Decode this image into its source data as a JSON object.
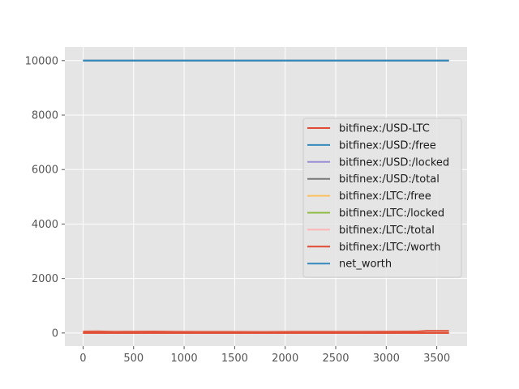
{
  "chart_data": {
    "type": "line",
    "title": "",
    "xlabel": "",
    "ylabel": "",
    "xlim": [
      -180,
      3800
    ],
    "ylim": [
      -480,
      10500
    ],
    "xticks": [
      0,
      500,
      1000,
      1500,
      2000,
      2500,
      3000,
      3500
    ],
    "yticks": [
      0,
      2000,
      4000,
      6000,
      8000,
      10000
    ],
    "grid": true,
    "legend_position": "right",
    "series": [
      {
        "name": "bitfinex:/USD-LTC",
        "color": "#e24a33",
        "x": [
          0,
          150,
          300,
          500,
          700,
          900,
          1200,
          1500,
          1800,
          2100,
          2400,
          2700,
          3000,
          3300,
          3400,
          3620
        ],
        "y": [
          55,
          60,
          48,
          52,
          55,
          46,
          44,
          45,
          42,
          46,
          50,
          48,
          52,
          56,
          75,
          80
        ]
      },
      {
        "name": "bitfinex:/USD:/free",
        "color": "#348abd",
        "x": [
          0,
          3620
        ],
        "y": [
          10000,
          10000
        ]
      },
      {
        "name": "bitfinex:/USD:/locked",
        "color": "#988ed5",
        "x": [
          0,
          3620
        ],
        "y": [
          0,
          0
        ]
      },
      {
        "name": "bitfinex:/USD:/total",
        "color": "#777777",
        "x": [
          0,
          3620
        ],
        "y": [
          10000,
          10000
        ]
      },
      {
        "name": "bitfinex:/LTC:/free",
        "color": "#fbc15e",
        "x": [
          0,
          3620
        ],
        "y": [
          0,
          0
        ]
      },
      {
        "name": "bitfinex:/LTC:/locked",
        "color": "#8eba42",
        "x": [
          0,
          3620
        ],
        "y": [
          0,
          0
        ]
      },
      {
        "name": "bitfinex:/LTC:/total",
        "color": "#ffb5b8",
        "x": [
          0,
          3620
        ],
        "y": [
          0,
          0
        ]
      },
      {
        "name": "bitfinex:/LTC:/worth",
        "color": "#e24a33",
        "x": [
          0,
          3620
        ],
        "y": [
          0,
          0
        ]
      },
      {
        "name": "net_worth",
        "color": "#348abd",
        "x": [
          0,
          3620
        ],
        "y": [
          10000,
          10000
        ]
      }
    ]
  }
}
